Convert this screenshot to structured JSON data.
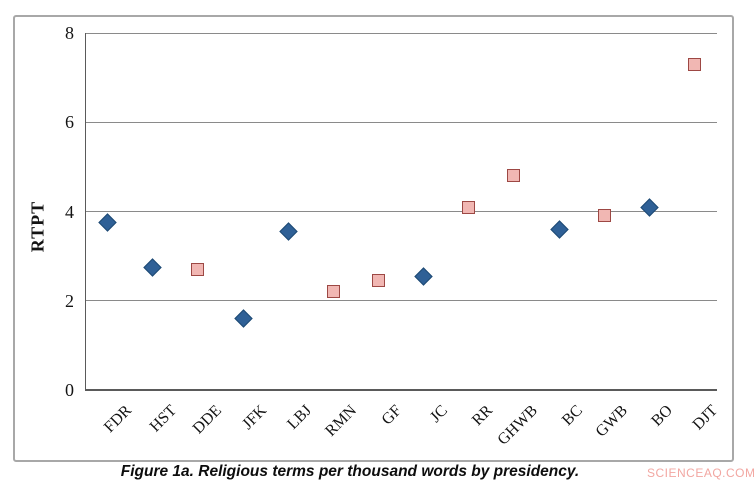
{
  "figure": {
    "caption": "Figure 1a. Religious terms per thousand words by presidency.",
    "watermark": "SCIENCEAQ.COM"
  },
  "chart_data": {
    "type": "scatter",
    "title": "",
    "xlabel": "",
    "ylabel": "RTPT",
    "ylim": [
      0,
      8
    ],
    "yticks": [
      0,
      2,
      4,
      6,
      8
    ],
    "grid": "horizontal",
    "legend": "none",
    "categories": [
      "FDR",
      "HST",
      "DDE",
      "JFK",
      "LBJ",
      "RMN",
      "GF",
      "JC",
      "RR",
      "GHWB",
      "BC",
      "GWB",
      "BO",
      "DJT"
    ],
    "points": [
      {
        "category": "FDR",
        "value": 3.75,
        "marker": "diamond"
      },
      {
        "category": "HST",
        "value": 2.75,
        "marker": "diamond"
      },
      {
        "category": "DDE",
        "value": 2.7,
        "marker": "square"
      },
      {
        "category": "JFK",
        "value": 1.6,
        "marker": "diamond"
      },
      {
        "category": "LBJ",
        "value": 3.55,
        "marker": "diamond"
      },
      {
        "category": "RMN",
        "value": 2.2,
        "marker": "square"
      },
      {
        "category": "GF",
        "value": 2.45,
        "marker": "square"
      },
      {
        "category": "JC",
        "value": 2.55,
        "marker": "diamond"
      },
      {
        "category": "RR",
        "value": 4.1,
        "marker": "square"
      },
      {
        "category": "GHWB",
        "value": 4.8,
        "marker": "square"
      },
      {
        "category": "BC",
        "value": 3.6,
        "marker": "diamond"
      },
      {
        "category": "GWB",
        "value": 3.9,
        "marker": "square"
      },
      {
        "category": "BO",
        "value": 4.1,
        "marker": "diamond"
      },
      {
        "category": "DJT",
        "value": 7.3,
        "marker": "square"
      }
    ],
    "marker_styles": {
      "diamond": {
        "fill": "#2f6096",
        "border": "#1e4a74"
      },
      "square": {
        "fill": "#f1b7b3",
        "border": "#9d4844"
      }
    },
    "colors": {
      "gridline": "#8a8a8a",
      "axis": "#5a5a5a",
      "figure_border": "#a8a8a8",
      "watermark": "#f2a7a2",
      "text": "#141414"
    }
  }
}
